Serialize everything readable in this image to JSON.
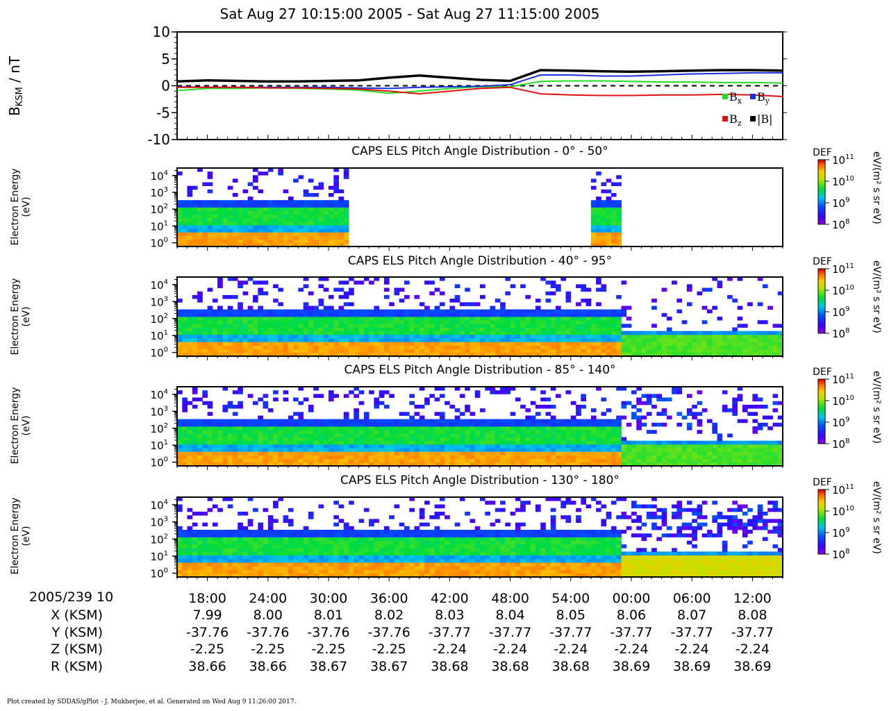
{
  "title": "Sat Aug 27 10:15:00 2005 - Sat Aug 27 11:15:00 2005",
  "credit": "Plot created by SDDAS/gPlot - J. Mukherjee, et al.  Generated on Wed Aug 9 11:26:00 2017.",
  "colors": {
    "bx": "#22dd22",
    "by": "#1a2ee0",
    "bz": "#e01010",
    "btot": "#000000"
  },
  "chart_data": [
    {
      "type": "line",
      "ylabel_main": "B",
      "ylabel_sub": "KSM",
      "ylabel_unit": " / nT",
      "ylim": [
        -10,
        10
      ],
      "yticks": [
        "10",
        "5",
        "0",
        "-5",
        "-10"
      ],
      "zero_line": "dashed",
      "legend_placement": "bottom-right",
      "x_minutes": [
        0,
        3,
        6,
        9,
        12,
        15,
        18,
        21,
        24,
        27,
        30,
        33,
        36,
        39,
        42,
        45,
        48,
        51,
        54,
        57,
        60
      ],
      "series": [
        {
          "name": "Bx",
          "name_main": "B",
          "name_sub": "x",
          "color_key": "bx",
          "values": [
            -0.9,
            -0.5,
            -0.5,
            -0.4,
            -0.5,
            -0.6,
            -0.8,
            -1.4,
            -1.0,
            -0.5,
            -0.2,
            -0.2,
            0.8,
            0.9,
            0.9,
            0.8,
            0.7,
            0.7,
            0.6,
            0.6,
            0.5
          ]
        },
        {
          "name": "By",
          "name_main": "B",
          "name_sub": "y",
          "color_key": "by",
          "values": [
            -0.2,
            -0.3,
            -0.3,
            -0.3,
            -0.3,
            -0.3,
            -0.4,
            -0.5,
            -0.3,
            -0.2,
            -0.1,
            0.2,
            2.0,
            2.0,
            1.8,
            1.8,
            2.0,
            2.2,
            2.3,
            2.4,
            2.4
          ]
        },
        {
          "name": "Bz",
          "name_main": "B",
          "name_sub": "z",
          "color_key": "bz",
          "values": [
            -0.3,
            -0.3,
            -0.3,
            -0.4,
            -0.4,
            -0.5,
            -0.6,
            -1.0,
            -1.5,
            -1.0,
            -0.5,
            -0.3,
            -1.5,
            -1.7,
            -1.8,
            -1.8,
            -1.7,
            -1.7,
            -1.6,
            -1.7,
            -2.0
          ]
        },
        {
          "name": "|B|",
          "name_main": "|B|",
          "name_sub": "",
          "color_key": "btot",
          "values": [
            0.8,
            1.0,
            0.9,
            0.8,
            0.8,
            0.9,
            1.0,
            1.5,
            1.9,
            1.5,
            1.1,
            0.9,
            2.9,
            2.8,
            2.7,
            2.6,
            2.7,
            2.8,
            2.9,
            2.9,
            2.8
          ]
        }
      ]
    },
    {
      "type": "heatmap",
      "title": "CAPS ELS Pitch Angle Distribution - 0° - 50°",
      "ylabel": "Electron Energy",
      "yunit": "(eV)",
      "yscale": "log",
      "ylim": [
        0.6,
        28000
      ],
      "ytick_exponents": [
        "0",
        "1",
        "2",
        "3",
        "4"
      ],
      "colorbar": {
        "label": "DEF",
        "unit": "eV/(m² s sr eV)",
        "range": [
          100000000.0,
          100000000000.0
        ],
        "exponents": [
          "11",
          "10",
          "9",
          "8"
        ]
      },
      "data_gap_minutes": [
        [
          17,
          41
        ],
        [
          44,
          60
        ]
      ],
      "regime_change_minute": 44
    },
    {
      "type": "heatmap",
      "title": "CAPS ELS Pitch Angle Distribution - 40° - 95°",
      "ylabel": "Electron Energy",
      "yunit": "(eV)",
      "yscale": "log",
      "ylim": [
        0.6,
        28000
      ],
      "ytick_exponents": [
        "0",
        "1",
        "2",
        "3",
        "4"
      ],
      "colorbar": {
        "label": "DEF",
        "unit": "eV/(m² s sr eV)",
        "range": [
          100000000.0,
          100000000000.0
        ],
        "exponents": [
          "11",
          "10",
          "9",
          "8"
        ]
      },
      "regime_change_minute": 44
    },
    {
      "type": "heatmap",
      "title": "CAPS ELS Pitch Angle Distribution - 85° - 140°",
      "ylabel": "Electron Energy",
      "yunit": "(eV)",
      "yscale": "log",
      "ylim": [
        0.6,
        28000
      ],
      "ytick_exponents": [
        "0",
        "1",
        "2",
        "3",
        "4"
      ],
      "colorbar": {
        "label": "DEF",
        "unit": "eV/(m² s sr eV)",
        "range": [
          100000000.0,
          100000000000.0
        ],
        "exponents": [
          "11",
          "10",
          "9",
          "8"
        ]
      },
      "regime_change_minute": 44
    },
    {
      "type": "heatmap",
      "title": "CAPS ELS Pitch Angle Distribution - 130° - 180°",
      "ylabel": "Electron Energy",
      "yunit": "(eV)",
      "yscale": "log",
      "ylim": [
        0.6,
        28000
      ],
      "ytick_exponents": [
        "0",
        "1",
        "2",
        "3",
        "4"
      ],
      "colorbar": {
        "label": "DEF",
        "unit": "eV/(m² s sr eV)",
        "range": [
          100000000.0,
          100000000000.0
        ],
        "exponents": [
          "11",
          "10",
          "9",
          "8"
        ]
      },
      "regime_change_minute": 44
    }
  ],
  "xaxis": {
    "prefix": "2005/239 10",
    "tick_minutes": [
      3,
      9,
      15,
      21,
      27,
      33,
      39,
      45,
      51,
      57
    ],
    "ticks": [
      "18:00",
      "24:00",
      "30:00",
      "36:00",
      "42:00",
      "48:00",
      "54:00",
      "00:00",
      "06:00",
      "12:00"
    ]
  },
  "ephemeris": [
    {
      "label": "X (KSM)",
      "values": [
        "7.99",
        "8.00",
        "8.01",
        "8.02",
        "8.03",
        "8.04",
        "8.05",
        "8.06",
        "8.07",
        "8.08"
      ]
    },
    {
      "label": "Y (KSM)",
      "values": [
        "-37.76",
        "-37.76",
        "-37.76",
        "-37.76",
        "-37.77",
        "-37.77",
        "-37.77",
        "-37.77",
        "-37.77",
        "-37.77"
      ]
    },
    {
      "label": "Z (KSM)",
      "values": [
        "-2.25",
        "-2.25",
        "-2.25",
        "-2.25",
        "-2.24",
        "-2.24",
        "-2.24",
        "-2.24",
        "-2.24",
        "-2.24"
      ]
    },
    {
      "label": "R (KSM)",
      "values": [
        "38.66",
        "38.66",
        "38.67",
        "38.67",
        "38.68",
        "38.68",
        "38.68",
        "38.69",
        "38.69",
        "38.69"
      ]
    }
  ]
}
